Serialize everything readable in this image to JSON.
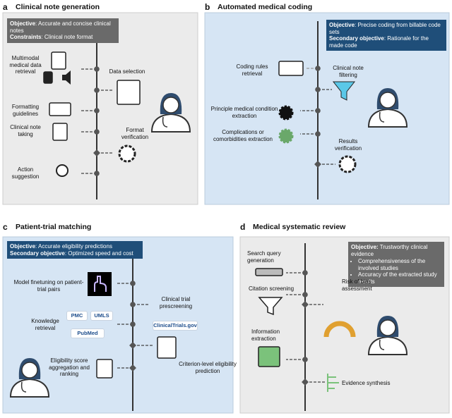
{
  "panels": [
    {
      "letter": "a",
      "title": "Clinical note generation",
      "objective_box": [
        {
          "bold": "Objective",
          "text": ": Accurate and concise clinical notes"
        },
        {
          "bold": "Constraints",
          "text": ": Clinical note format"
        }
      ],
      "steps": [
        "Multimodal medical data retrieval",
        "Data selection",
        "Formatting guidelines",
        "Clinical note taking",
        "Format verification",
        "Action suggestion"
      ]
    },
    {
      "letter": "b",
      "title": "Automated medical coding",
      "objective_box": [
        {
          "bold": "Objective",
          "text": ": Precise coding from billable code sets"
        },
        {
          "bold": "Secondary objective",
          "text": ": Rationale for the made code"
        }
      ],
      "steps": [
        "Coding rules retrieval",
        "Clinical note filtering",
        "Principle medical condition extraction",
        "Complications or comorbidities extraction",
        "Results verification"
      ]
    },
    {
      "letter": "c",
      "title": "Patient-trial matching",
      "objective_box": [
        {
          "bold": "Objective",
          "text": ": Accurate eligibility predictions"
        },
        {
          "bold": "Secondary objective",
          "text": ": Optimized speed and cost"
        }
      ],
      "steps": [
        "Model finetuning on patient-trial pairs",
        "Clinical trial prescreening",
        "Knowledge retrieval",
        "Criterion-level eligibility prediction",
        "Eligibility score aggregation and ranking"
      ],
      "logos": [
        "PMC",
        "UMLS",
        "PubMed",
        "ClinicalTrials.gov"
      ]
    },
    {
      "letter": "d",
      "title": "Medical systematic review",
      "objective_box": [
        {
          "bold": "Objective:",
          "text": " Trustworthy clinical evidence"
        }
      ],
      "bullets": [
        "Comprehensiveness of the involved studies",
        "Accuracy of the extracted study results"
      ],
      "steps": [
        "Search query generation",
        "Citation screening",
        "Risk of bias assessment",
        "Information extraction",
        "Evidence synthesis"
      ]
    }
  ]
}
